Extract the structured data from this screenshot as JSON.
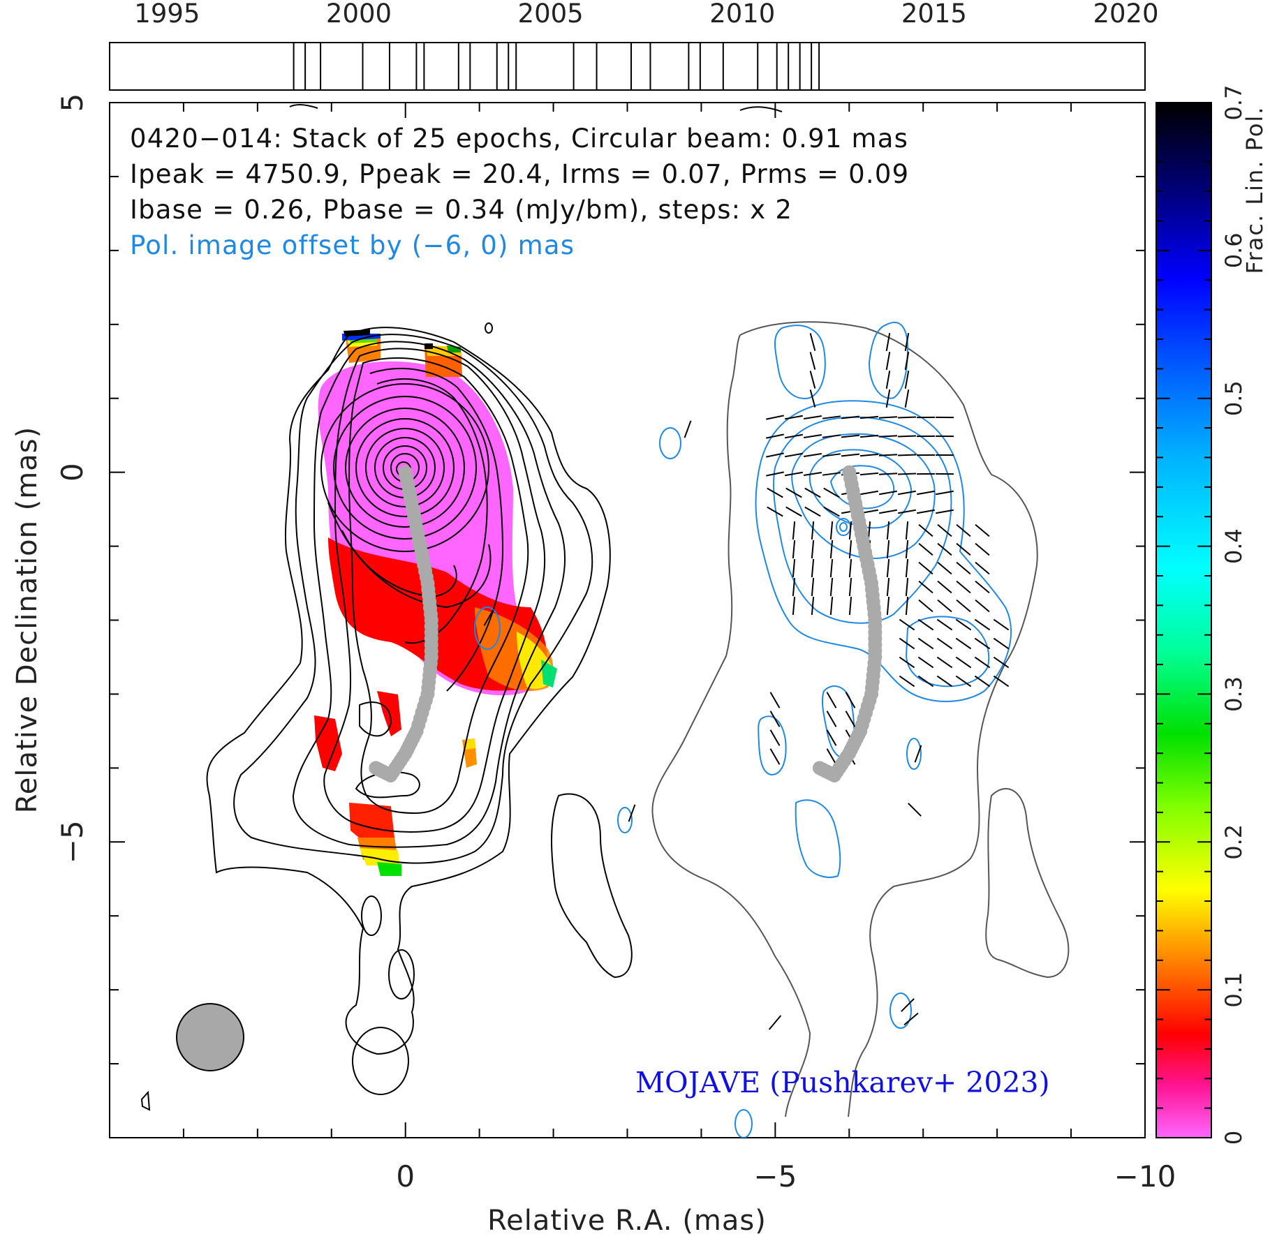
{
  "chart_data": {
    "type": "contour",
    "source": "0420-014",
    "timeline": {
      "years": [
        1995,
        2000,
        2005,
        2010,
        2015,
        2020
      ],
      "epochs": [
        1998.3,
        1998.6,
        1999.0,
        2000.1,
        2000.8,
        2001.5,
        2001.7,
        2002.6,
        2002.9,
        2003.6,
        2003.9,
        2004.1,
        2005.6,
        2006.2,
        2007.1,
        2007.6,
        2008.6,
        2008.9,
        2009.5,
        2010.4,
        2010.9,
        2011.2,
        2011.5,
        2011.8,
        2012.0
      ]
    },
    "annotations": {
      "line1": "0420−014: Stack of 25 epochs, Circular beam: 0.91 mas",
      "line2": "Ipeak = 4750.9, Ppeak = 20.4, Irms = 0.07, Prms = 0.09",
      "line3": "Ibase = 0.26, Pbase = 0.34 (mJy/bm), steps: x 2",
      "line4": "Pol. image offset by (−6, 0) mas",
      "credit": "MOJAVE (Pushkarev+ 2023)"
    },
    "xlabel": "Relative R.A. (mas)",
    "ylabel": "Relative Declination (mas)",
    "xlim": [
      4,
      -10
    ],
    "ylim": [
      -9,
      5
    ],
    "xticks": [
      0,
      -5,
      -10
    ],
    "xtick_labels": [
      "0",
      "−5",
      "−10"
    ],
    "yticks": [
      5,
      0,
      -5
    ],
    "ytick_labels": [
      "5",
      "0",
      "−5"
    ],
    "colorbar": {
      "label": "Frac. Lin. Pol.",
      "range": [
        0,
        0.7
      ],
      "ticks": [
        0,
        0.1,
        0.2,
        0.3,
        0.4,
        0.5,
        0.6,
        0.7
      ],
      "tick_labels": [
        "0",
        "0.1",
        "0.2",
        "0.3",
        "0.4",
        "0.5",
        "0.6",
        "0.7"
      ]
    },
    "beam_diameter_mas": 0.91,
    "ridgeline": [
      [
        0,
        0
      ],
      [
        -0.1,
        -0.5
      ],
      [
        -0.2,
        -1.0
      ],
      [
        -0.3,
        -1.5
      ],
      [
        -0.35,
        -2.0
      ],
      [
        -0.35,
        -2.5
      ],
      [
        -0.3,
        -3.0
      ],
      [
        -0.15,
        -3.5
      ],
      [
        0.0,
        -3.8
      ],
      [
        0.2,
        -4.1
      ],
      [
        0.4,
        -4.0
      ]
    ],
    "colors": {
      "total_intensity_contours": "#000000",
      "pol_contours": "#1e88e5",
      "pol_annotation_text": "#1e88e5",
      "credit_text": "#1010e0",
      "ridgeline": "#aaaaaa",
      "beam": "#a8a8a8"
    }
  }
}
